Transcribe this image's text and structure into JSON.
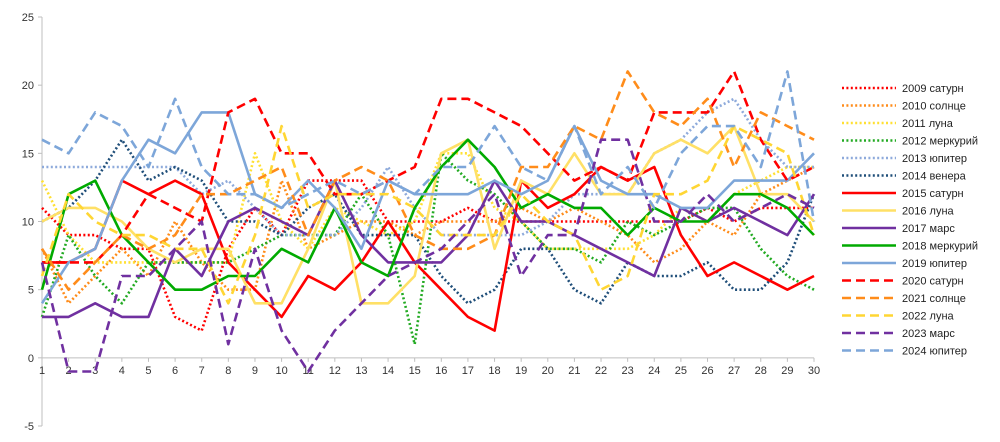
{
  "chart_data": {
    "type": "line",
    "title": "",
    "xlabel": "",
    "ylabel": "",
    "x": [
      1,
      2,
      3,
      4,
      5,
      6,
      7,
      8,
      9,
      10,
      11,
      12,
      13,
      14,
      15,
      16,
      17,
      18,
      19,
      20,
      21,
      22,
      23,
      24,
      25,
      26,
      27,
      28,
      29,
      30
    ],
    "ylim": [
      -5,
      25
    ],
    "yticks": [
      -5,
      0,
      5,
      10,
      15,
      20,
      25
    ],
    "grid": false,
    "legend": "right",
    "series": [
      {
        "name": "2009 сатурн",
        "color": "#ff0000",
        "dash": "dotted",
        "values": [
          11,
          9,
          9,
          8,
          8,
          3,
          2,
          8,
          11,
          9,
          13,
          13,
          13,
          10,
          10,
          10,
          11,
          10,
          10,
          10,
          10,
          10,
          10,
          10,
          10,
          11,
          10,
          11,
          11,
          11
        ]
      },
      {
        "name": "2010 солнце",
        "color": "#ff8c1a",
        "dash": "dotted",
        "values": [
          8,
          4,
          6,
          8,
          6,
          10,
          7,
          5,
          5,
          13,
          8,
          9,
          10,
          10,
          9,
          10,
          10,
          10,
          11,
          10,
          11,
          10,
          9,
          7,
          8,
          10,
          9,
          12,
          13,
          14
        ]
      },
      {
        "name": "2011 луна",
        "color": "#ffe033",
        "dash": "dotted",
        "values": [
          13,
          9,
          7,
          7,
          7,
          7,
          7,
          7,
          15,
          10,
          8,
          11,
          10,
          9,
          10,
          15,
          15,
          11,
          10,
          8,
          8,
          8,
          8,
          9,
          11,
          10,
          12,
          13,
          14,
          14
        ]
      },
      {
        "name": "2012 меркурий",
        "color": "#22aa22",
        "dash": "dotted",
        "values": [
          3,
          9,
          6,
          4,
          7,
          7,
          7,
          7,
          8,
          9,
          9,
          9,
          12,
          9,
          1,
          15,
          13,
          12,
          10,
          8,
          8,
          7,
          10,
          9,
          10,
          11,
          11,
          8,
          6,
          5
        ]
      },
      {
        "name": "2013 юпитер",
        "color": "#8eaadb",
        "dash": "dotted",
        "values": [
          14,
          14,
          14,
          14,
          14,
          14,
          12,
          13,
          11,
          9,
          9,
          9,
          11,
          14,
          11,
          9,
          9,
          9,
          9,
          10,
          12,
          12,
          12,
          15,
          16,
          18,
          19,
          16,
          14,
          14
        ]
      },
      {
        "name": "2014 венера",
        "color": "#1f4e79",
        "dash": "dotted",
        "values": [
          10,
          11,
          13,
          16,
          13,
          14,
          13,
          10,
          10,
          9,
          11,
          12,
          9,
          9,
          9,
          6,
          4,
          5,
          8,
          8,
          5,
          4,
          7,
          6,
          6,
          7,
          5,
          5,
          7,
          12
        ]
      },
      {
        "name": "2015 сатурн",
        "color": "#ff0000",
        "dash": "solid",
        "values": [
          7,
          7,
          8,
          13,
          12,
          13,
          12,
          7,
          5,
          3,
          6,
          5,
          7,
          10,
          7,
          5,
          3,
          2,
          13,
          11,
          12,
          14,
          13,
          14,
          9,
          6,
          7,
          6,
          5,
          6
        ]
      },
      {
        "name": "2016 луна",
        "color": "#ffe066",
        "dash": "solid",
        "values": [
          10,
          11,
          11,
          10,
          8,
          7,
          8,
          8,
          4,
          4,
          8,
          13,
          4,
          4,
          6,
          15,
          16,
          8,
          13,
          12,
          15,
          12,
          12,
          15,
          16,
          15,
          17,
          12,
          12,
          10
        ]
      },
      {
        "name": "2017 марс",
        "color": "#7030a0",
        "dash": "solid",
        "values": [
          3,
          3,
          4,
          3,
          3,
          8,
          6,
          10,
          11,
          10,
          9,
          13,
          9,
          7,
          7,
          7,
          9,
          13,
          10,
          10,
          9,
          8,
          7,
          6,
          11,
          10,
          11,
          10,
          9,
          12
        ]
      },
      {
        "name": "2018 меркурий",
        "color": "#00aa00",
        "dash": "solid",
        "values": [
          5,
          12,
          13,
          9,
          7,
          5,
          5,
          6,
          6,
          8,
          7,
          11,
          7,
          6,
          11,
          14,
          16,
          14,
          11,
          12,
          11,
          11,
          9,
          11,
          10,
          10,
          12,
          12,
          11,
          9
        ]
      },
      {
        "name": "2019 юпитер",
        "color": "#7da6d9",
        "dash": "solid",
        "values": [
          4,
          7,
          8,
          13,
          16,
          15,
          18,
          18,
          12,
          11,
          13,
          11,
          8,
          13,
          12,
          12,
          12,
          13,
          12,
          13,
          17,
          13,
          12,
          12,
          11,
          11,
          13,
          13,
          13,
          15
        ]
      },
      {
        "name": "2020 сатурн",
        "color": "#ff0000",
        "dash": "dashed",
        "values": [
          7,
          7,
          7,
          9,
          12,
          11,
          10,
          18,
          19,
          15,
          15,
          12,
          12,
          13,
          14,
          19,
          19,
          18,
          17,
          15,
          13,
          14,
          13,
          18,
          18,
          18,
          21,
          16,
          13,
          14
        ]
      },
      {
        "name": "2021 солнце",
        "color": "#ff8c1a",
        "dash": "dashed",
        "values": [
          8,
          5,
          7,
          9,
          8,
          9,
          12,
          12,
          13,
          14,
          9,
          13,
          14,
          13,
          9,
          8,
          8,
          9,
          14,
          14,
          17,
          16,
          21,
          18,
          17,
          19,
          14,
          18,
          17,
          16
        ]
      },
      {
        "name": "2022 луна",
        "color": "#ffd633",
        "dash": "dashed",
        "values": [
          6,
          12,
          10,
          9,
          9,
          8,
          8,
          4,
          9,
          17,
          11,
          12,
          12,
          12,
          11,
          9,
          9,
          9,
          12,
          10,
          9,
          5,
          6,
          12,
          12,
          13,
          17,
          16,
          15,
          9
        ]
      },
      {
        "name": "2023 марс",
        "color": "#7030a0",
        "dash": "dashed",
        "values": [
          7,
          -1,
          -1,
          6,
          6,
          8,
          10,
          1,
          8,
          2,
          -1,
          2,
          4,
          6,
          7,
          8,
          10,
          12,
          6,
          9,
          9,
          16,
          16,
          10,
          10,
          12,
          10,
          11,
          12,
          11
        ]
      },
      {
        "name": "2024 юпитер",
        "color": "#7da6d9",
        "dash": "dashed",
        "values": [
          16,
          15,
          18,
          17,
          14,
          19,
          14,
          12,
          12,
          11,
          12,
          13,
          12,
          13,
          12,
          14,
          14,
          17,
          14,
          13,
          17,
          12,
          14,
          11,
          15,
          17,
          17,
          14,
          21,
          10
        ]
      }
    ]
  }
}
